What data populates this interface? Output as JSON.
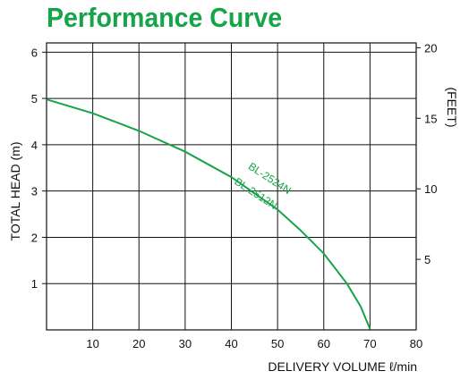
{
  "title": "Performance Curve",
  "chart_data": {
    "type": "line",
    "title": "Performance Curve",
    "xlabel": "DELIVERY VOLUME ℓ/min",
    "ylabel": "TOTAL HEAD (m)",
    "y2label": "(FEET)",
    "xlim": [
      0,
      80
    ],
    "ylim": [
      0,
      6.2
    ],
    "x_ticks": [
      "10",
      "20",
      "30",
      "40",
      "50",
      "60",
      "70",
      "80"
    ],
    "y_ticks": [
      "1",
      "2",
      "3",
      "4",
      "5",
      "6"
    ],
    "y2_ticks": [
      "5",
      "10",
      "15",
      "20"
    ],
    "grid": true,
    "color": "#17a34a",
    "series": [
      {
        "name": "BL-2524N",
        "x": [
          0,
          10,
          20,
          30,
          40,
          50,
          55,
          60,
          65,
          68,
          70
        ],
        "y": [
          4.98,
          4.68,
          4.3,
          3.85,
          3.3,
          2.6,
          2.15,
          1.65,
          1.0,
          0.5,
          0.02
        ]
      }
    ],
    "series_labels": [
      "BL-2524N",
      "BL-2512N"
    ]
  }
}
